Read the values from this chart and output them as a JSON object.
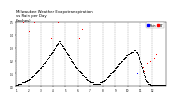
{
  "title": "Milwaukee Weather Evapotranspiration\nvs Rain per Day\n(Inches)",
  "title_fontsize": 2.8,
  "background_color": "#ffffff",
  "legend_rain_label": "Rain",
  "legend_et_label": "ET",
  "et_color": "#000000",
  "rain_color": "#0000ff",
  "excess_color": "#ff0000",
  "n_days": 365,
  "et_values": [
    0.01,
    0.01,
    0.01,
    0.01,
    0.02,
    0.02,
    0.02,
    0.02,
    0.02,
    0.02,
    0.02,
    0.02,
    0.02,
    0.03,
    0.03,
    0.03,
    0.03,
    0.03,
    0.03,
    0.03,
    0.03,
    0.04,
    0.04,
    0.04,
    0.04,
    0.04,
    0.05,
    0.05,
    0.05,
    0.05,
    0.05,
    0.06,
    0.06,
    0.06,
    0.06,
    0.07,
    0.07,
    0.07,
    0.08,
    0.08,
    0.08,
    0.08,
    0.09,
    0.09,
    0.09,
    0.1,
    0.1,
    0.1,
    0.11,
    0.11,
    0.11,
    0.12,
    0.12,
    0.12,
    0.13,
    0.13,
    0.13,
    0.14,
    0.14,
    0.14,
    0.15,
    0.15,
    0.16,
    0.16,
    0.16,
    0.17,
    0.17,
    0.18,
    0.18,
    0.18,
    0.19,
    0.19,
    0.2,
    0.2,
    0.21,
    0.21,
    0.21,
    0.22,
    0.22,
    0.23,
    0.23,
    0.24,
    0.24,
    0.24,
    0.25,
    0.25,
    0.26,
    0.26,
    0.27,
    0.27,
    0.28,
    0.28,
    0.29,
    0.29,
    0.3,
    0.3,
    0.31,
    0.31,
    0.32,
    0.32,
    0.33,
    0.33,
    0.34,
    0.34,
    0.35,
    0.35,
    0.35,
    0.34,
    0.34,
    0.33,
    0.33,
    0.32,
    0.32,
    0.31,
    0.31,
    0.3,
    0.3,
    0.29,
    0.29,
    0.28,
    0.28,
    0.27,
    0.27,
    0.26,
    0.26,
    0.25,
    0.25,
    0.24,
    0.24,
    0.23,
    0.23,
    0.22,
    0.22,
    0.21,
    0.21,
    0.2,
    0.2,
    0.19,
    0.19,
    0.18,
    0.18,
    0.17,
    0.17,
    0.16,
    0.16,
    0.15,
    0.15,
    0.14,
    0.14,
    0.14,
    0.13,
    0.13,
    0.13,
    0.12,
    0.12,
    0.12,
    0.11,
    0.11,
    0.11,
    0.1,
    0.1,
    0.1,
    0.09,
    0.09,
    0.09,
    0.08,
    0.08,
    0.08,
    0.07,
    0.07,
    0.07,
    0.06,
    0.06,
    0.06,
    0.05,
    0.05,
    0.05,
    0.04,
    0.04,
    0.04,
    0.04,
    0.03,
    0.03,
    0.03,
    0.03,
    0.03,
    0.03,
    0.03,
    0.02,
    0.02,
    0.02,
    0.02,
    0.02,
    0.02,
    0.02,
    0.02,
    0.02,
    0.02,
    0.02,
    0.02,
    0.02,
    0.02,
    0.02,
    0.02,
    0.02,
    0.03,
    0.03,
    0.03,
    0.03,
    0.03,
    0.03,
    0.04,
    0.04,
    0.04,
    0.04,
    0.05,
    0.05,
    0.05,
    0.05,
    0.06,
    0.06,
    0.06,
    0.07,
    0.07,
    0.07,
    0.08,
    0.08,
    0.08,
    0.09,
    0.09,
    0.09,
    0.1,
    0.1,
    0.1,
    0.11,
    0.11,
    0.11,
    0.12,
    0.12,
    0.12,
    0.13,
    0.13,
    0.14,
    0.14,
    0.14,
    0.15,
    0.15,
    0.15,
    0.16,
    0.16,
    0.17,
    0.17,
    0.17,
    0.18,
    0.18,
    0.18,
    0.19,
    0.19,
    0.2,
    0.2,
    0.2,
    0.21,
    0.21,
    0.21,
    0.22,
    0.22,
    0.22,
    0.23,
    0.23,
    0.23,
    0.24,
    0.24,
    0.24,
    0.25,
    0.25,
    0.25,
    0.25,
    0.25,
    0.26,
    0.26,
    0.26,
    0.26,
    0.27,
    0.27,
    0.27,
    0.27,
    0.27,
    0.27,
    0.28,
    0.28,
    0.28,
    0.28,
    0.28,
    0.27,
    0.27,
    0.27,
    0.26,
    0.26,
    0.25,
    0.24,
    0.23,
    0.22,
    0.21,
    0.2,
    0.19,
    0.18,
    0.17,
    0.16,
    0.15,
    0.14,
    0.13,
    0.12,
    0.11,
    0.1,
    0.09,
    0.08,
    0.07,
    0.06,
    0.05,
    0.04,
    0.04,
    0.03,
    0.03,
    0.02,
    0.02,
    0.02,
    0.02,
    0.02,
    0.01,
    0.01,
    0.01,
    0.01,
    0.01,
    0.01,
    0.01,
    0.01,
    0.01,
    0.01,
    0.01,
    0.01,
    0.01,
    0.01,
    0.01,
    0.01,
    0.01,
    0.01,
    0.01,
    0.01,
    0.01,
    0.01,
    0.01,
    0.01,
    0.01,
    0.01,
    0.01,
    0.01,
    0.01,
    0.01,
    0.01,
    0.01,
    0.01,
    0.01,
    0.01,
    0.01,
    0.01
  ],
  "rain_values": [
    0.0,
    0.0,
    0.0,
    0.0,
    0.0,
    0.0,
    0.0,
    0.0,
    0.0,
    0.0,
    0.0,
    0.0,
    0.0,
    0.0,
    0.0,
    0.0,
    0.0,
    0.52,
    0.0,
    0.0,
    0.0,
    0.0,
    0.0,
    0.0,
    0.0,
    0.0,
    0.0,
    0.0,
    0.0,
    0.0,
    0.0,
    0.43,
    0.0,
    0.0,
    0.0,
    0.0,
    0.0,
    0.0,
    0.0,
    0.0,
    0.0,
    0.0,
    0.0,
    0.0,
    0.75,
    0.0,
    0.0,
    0.0,
    0.0,
    0.0,
    0.0,
    0.0,
    0.0,
    0.0,
    0.0,
    0.0,
    0.0,
    0.0,
    0.0,
    0.0,
    0.0,
    0.0,
    0.0,
    0.0,
    0.0,
    0.0,
    0.0,
    0.0,
    0.0,
    0.0,
    0.0,
    0.0,
    0.0,
    0.0,
    0.0,
    0.0,
    0.0,
    0.0,
    0.0,
    0.0,
    0.0,
    0.0,
    0.0,
    0.0,
    0.0,
    0.0,
    0.38,
    0.0,
    0.0,
    0.0,
    0.0,
    0.0,
    0.0,
    0.0,
    0.0,
    0.0,
    0.0,
    0.0,
    0.0,
    0.0,
    0.0,
    0.0,
    0.0,
    2.5,
    0.0,
    0.0,
    0.0,
    0.0,
    0.0,
    0.0,
    0.0,
    0.0,
    0.0,
    0.0,
    0.0,
    0.0,
    0.0,
    0.0,
    0.0,
    0.0,
    0.0,
    0.0,
    0.0,
    0.0,
    0.0,
    0.0,
    0.0,
    0.0,
    0.0,
    0.0,
    0.0,
    0.0,
    0.0,
    0.0,
    0.0,
    0.0,
    0.0,
    0.0,
    0.0,
    0.0,
    0.0,
    0.0,
    0.0,
    0.0,
    0.0,
    0.0,
    0.0,
    0.0,
    0.0,
    0.0,
    0.0,
    0.0,
    0.0,
    0.38,
    0.0,
    0.0,
    0.0,
    0.0,
    0.0,
    0.0,
    0.0,
    0.45,
    0.0,
    0.0,
    0.0,
    0.0,
    0.0,
    0.0,
    0.0,
    0.0,
    0.0,
    0.0,
    0.0,
    0.0,
    0.0,
    0.0,
    0.0,
    0.0,
    0.0,
    0.0,
    0.0,
    0.0,
    0.0,
    0.0,
    0.0,
    0.0,
    0.0,
    0.0,
    0.0,
    0.0,
    0.0,
    0.0,
    0.0,
    0.0,
    0.0,
    0.0,
    0.0,
    0.0,
    0.0,
    0.0,
    0.0,
    0.0,
    0.0,
    0.0,
    0.0,
    0.0,
    0.0,
    0.0,
    0.0,
    0.0,
    0.0,
    0.0,
    0.0,
    0.0,
    0.0,
    0.0,
    0.0,
    0.0,
    0.0,
    0.0,
    0.0,
    0.0,
    0.0,
    0.0,
    0.0,
    0.0,
    0.0,
    0.0,
    0.0,
    0.0,
    0.0,
    0.0,
    0.0,
    0.0,
    0.0,
    0.0,
    0.0,
    0.0,
    0.0,
    0.0,
    0.0,
    0.0,
    0.0,
    0.0,
    0.0,
    0.0,
    0.0,
    0.0,
    0.0,
    0.0,
    0.0,
    0.0,
    0.0,
    0.0,
    0.0,
    0.0,
    0.0,
    0.0,
    0.0,
    0.0,
    0.0,
    0.0,
    0.0,
    0.0,
    0.0,
    0.0,
    0.0,
    0.0,
    0.0,
    0.0,
    0.0,
    0.0,
    0.0,
    0.0,
    0.0,
    0.0,
    0.0,
    0.0,
    0.0,
    0.0,
    0.0,
    0.0,
    0.0,
    0.0,
    0.0,
    0.0,
    0.0,
    0.0,
    0.0,
    0.0,
    0.0,
    0.0,
    0.0,
    0.0,
    0.0,
    0.1,
    0.0,
    0.0,
    0.0,
    0.0,
    0.0,
    0.0,
    0.0,
    0.0,
    0.0,
    0.0,
    0.0,
    0.0,
    0.0,
    0.0,
    0.15,
    0.0,
    0.0,
    0.12,
    0.0,
    0.0,
    0.0,
    0.0,
    0.0,
    0.0,
    0.0,
    0.18,
    0.0,
    0.0,
    0.0,
    0.0,
    0.0,
    0.0,
    0.2,
    0.0,
    0.0,
    0.0,
    0.0,
    0.0,
    0.0,
    0.0,
    0.0,
    0.0,
    0.22,
    0.0,
    0.0,
    0.0,
    0.25,
    0.0,
    0.0,
    0.0,
    0.0,
    0.0,
    0.0,
    0.0,
    0.0,
    0.0,
    0.0,
    0.0,
    0.0,
    0.0,
    0.0,
    0.0,
    0.0,
    0.0,
    0.0,
    0.0,
    0.0,
    0.0,
    0.0
  ],
  "ylim": [
    0.0,
    0.5
  ],
  "month_ticks": [
    0,
    31,
    59,
    90,
    120,
    151,
    181,
    212,
    243,
    273,
    304,
    334
  ],
  "month_labels": [
    "1",
    "2",
    "3",
    "4",
    "5",
    "6",
    "7",
    "8",
    "9",
    "10",
    "11",
    "12"
  ],
  "dot_size": 0.5,
  "grid_color": "#999999",
  "grid_style": "--",
  "grid_lw": 0.3
}
